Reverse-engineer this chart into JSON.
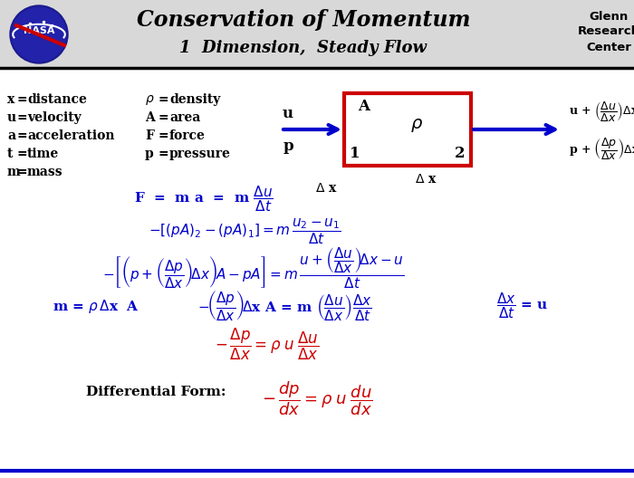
{
  "title_line1": "Conservation of Momentum",
  "title_line2": "1  Dimension,  Steady Flow",
  "glenn_text": "Glenn\nResearch\nCenter",
  "blue": "#0000cc",
  "red": "#cc0000",
  "black": "#000000",
  "white": "#ffffff",
  "gray_header": "#d8d8d8"
}
